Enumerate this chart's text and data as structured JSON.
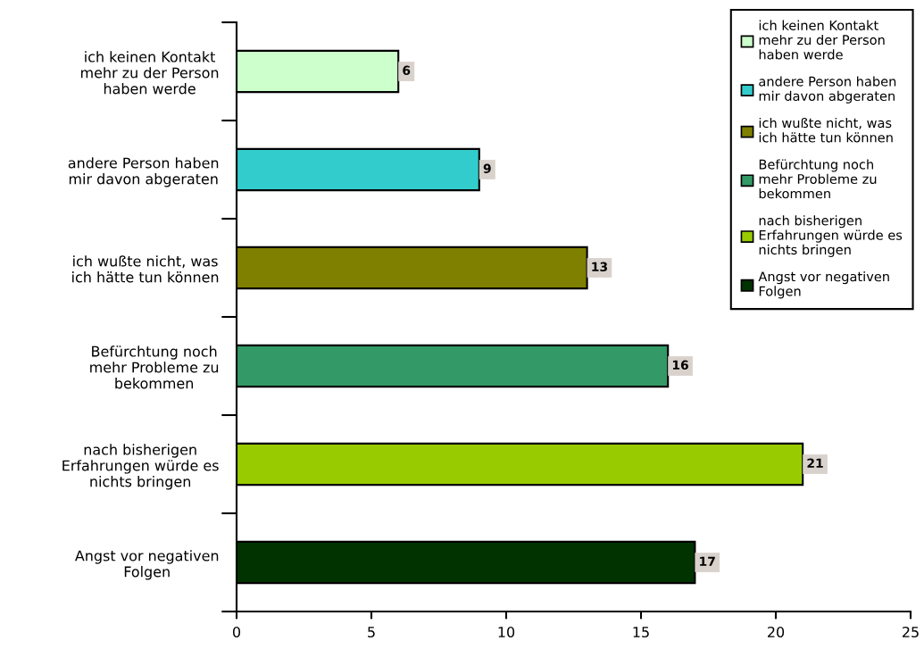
{
  "chart_data": {
    "type": "bar",
    "orientation": "horizontal",
    "stacked": true,
    "categories": [
      "ich keinen Kontakt\nmehr zu der Person\nhaben werde",
      "andere Person haben\nmir davon abgeraten",
      "ich wußte nicht, was\nich hätte tun können",
      "Befürchtung noch\nmehr Probleme zu\nbekommen",
      "nach bisherigen\nErfahrungen würde es\nnichts bringen",
      "Angst vor negativen\nFolgen"
    ],
    "series": [
      {
        "name": "ich keinen Kontakt\nmehr zu der Person\nhaben werde",
        "color": "#ccffcc",
        "values": [
          6,
          null,
          null,
          null,
          null,
          null
        ]
      },
      {
        "name": "andere Person haben\nmir davon abgeraten",
        "color": "#33cccc",
        "values": [
          null,
          9,
          null,
          null,
          null,
          null
        ]
      },
      {
        "name": "ich wußte nicht, was\nich hätte tun können",
        "color": "#808000",
        "values": [
          null,
          null,
          13,
          null,
          null,
          null
        ]
      },
      {
        "name": "Befürchtung noch\nmehr Probleme zu\nbekommen",
        "color": "#339966",
        "values": [
          null,
          null,
          null,
          16,
          null,
          null
        ]
      },
      {
        "name": "nach bisherigen\nErfahrungen würde es\nnichts bringen",
        "color": "#99cc00",
        "values": [
          null,
          null,
          null,
          null,
          21,
          null
        ]
      },
      {
        "name": "Angst vor negativen\nFolgen",
        "color": "#003300",
        "values": [
          null,
          null,
          null,
          null,
          null,
          17
        ]
      }
    ],
    "xlim": [
      0,
      25
    ],
    "xticks": [
      0,
      5,
      10,
      15,
      20,
      25
    ],
    "data_labels": true,
    "legend": "top right"
  }
}
